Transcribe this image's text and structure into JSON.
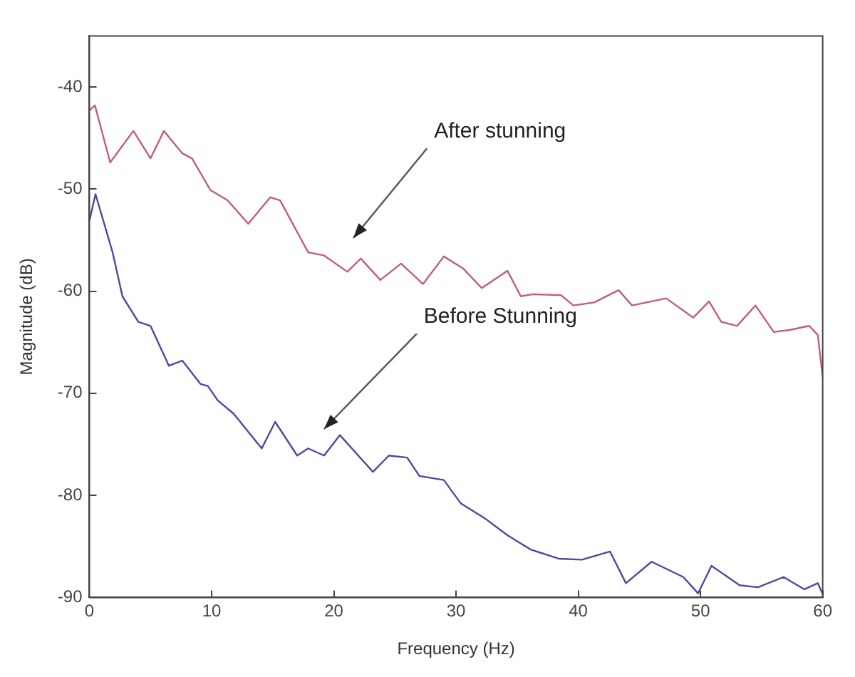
{
  "chart_data": {
    "type": "line",
    "xlabel": "Frequency (Hz)",
    "ylabel": "Magnitude (dB)",
    "xlim": [
      0,
      60
    ],
    "xticks": [
      0,
      10,
      20,
      30,
      40,
      50,
      60
    ],
    "ylim": [
      -90,
      -35
    ],
    "yticks": [
      -90,
      -80,
      -70,
      -60,
      -50,
      -40
    ],
    "grid": false,
    "legend": false,
    "marker": "none",
    "line_style": "solid",
    "annotations": [
      "After stunning",
      "Before Stunning"
    ],
    "series": [
      {
        "color": "#c06070",
        "x": [
          0,
          0.45,
          1.7,
          3.6,
          5.0,
          6.1,
          7.6,
          8.4,
          9.9,
          11.3,
          13.0,
          14.8,
          15.6,
          17.9,
          19.2,
          21.1,
          22.2,
          23.8,
          25.5,
          27.3,
          29.0,
          30.6,
          32.1,
          34.2,
          35.3,
          36.3,
          38.6,
          39.6,
          41.3,
          43.3,
          44.4,
          47.2,
          49.4,
          50.7,
          51.7,
          53.0,
          54.5,
          56.0,
          57.3,
          58.9,
          59.6,
          60
        ],
        "values": [
          -42.3,
          -41.8,
          -47.4,
          -44.3,
          -47.0,
          -44.3,
          -46.5,
          -47.0,
          -50.1,
          -51.1,
          -53.4,
          -50.8,
          -51.1,
          -56.2,
          -56.5,
          -58.1,
          -56.8,
          -58.9,
          -57.3,
          -59.3,
          -56.6,
          -57.8,
          -59.7,
          -58.0,
          -60.5,
          -60.3,
          -60.4,
          -61.4,
          -61.1,
          -59.9,
          -61.4,
          -60.7,
          -62.6,
          -61.0,
          -63.0,
          -63.4,
          -61.4,
          -64.0,
          -63.8,
          -63.4,
          -64.3,
          -68.4
        ]
      },
      {
        "color": "#4a4aa0",
        "x": [
          0,
          0.5,
          1.9,
          2.7,
          4.0,
          5.0,
          6.5,
          7.6,
          9.1,
          9.7,
          10.5,
          11.8,
          14.1,
          15.2,
          17.0,
          17.9,
          19.2,
          20.5,
          23.2,
          24.5,
          26.0,
          27.0,
          29.0,
          30.4,
          32.3,
          34.2,
          36.1,
          38.4,
          40.3,
          42.6,
          43.9,
          46.0,
          48.6,
          49.8,
          50.9,
          53.2,
          54.7,
          56.8,
          58.5,
          59.6,
          60
        ],
        "values": [
          -53.1,
          -50.5,
          -56.2,
          -60.5,
          -63.0,
          -63.4,
          -67.3,
          -66.8,
          -69.1,
          -69.3,
          -70.7,
          -72.0,
          -75.4,
          -72.8,
          -76.1,
          -75.4,
          -76.1,
          -74.1,
          -77.7,
          -76.1,
          -76.3,
          -78.1,
          -78.5,
          -80.8,
          -82.2,
          -83.9,
          -85.3,
          -86.2,
          -86.3,
          -85.5,
          -88.6,
          -86.5,
          -88.0,
          -89.6,
          -86.9,
          -88.8,
          -89.0,
          -88.0,
          -89.2,
          -88.6,
          -89.7
        ]
      }
    ]
  }
}
